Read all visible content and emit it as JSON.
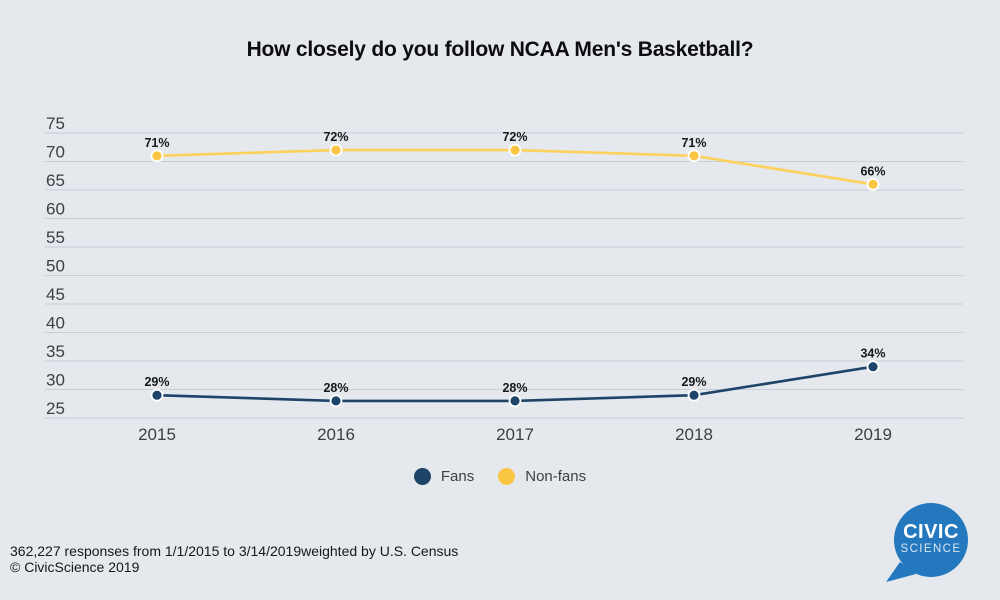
{
  "page": {
    "background": "#e5e8ed"
  },
  "chart_data": {
    "type": "line",
    "title": "How closely do you follow NCAA Men's Basketball?",
    "x": [
      "2015",
      "2016",
      "2017",
      "2018",
      "2019"
    ],
    "series": [
      {
        "name": "Fans",
        "values": [
          29,
          28,
          28,
          29,
          34
        ],
        "labels": [
          "29%",
          "28%",
          "28%",
          "29%",
          "34%"
        ],
        "line_color": "#1e4569",
        "marker_color": "#1e4569"
      },
      {
        "name": "Non-fans",
        "values": [
          71,
          72,
          72,
          71,
          66
        ],
        "labels": [
          "71%",
          "72%",
          "72%",
          "71%",
          "66%"
        ],
        "line_color": "#fcd25c",
        "marker_color": "#fbc544"
      }
    ],
    "ylim": [
      25,
      75
    ],
    "yticks": [
      75,
      70,
      65,
      60,
      55,
      50,
      45,
      40,
      35,
      30,
      25
    ],
    "grid": true,
    "legend_position": "bottom",
    "data_labels_shown": true
  },
  "footer": {
    "line1": "362,227 responses from 1/1/2015 to 3/14/2019weighted by U.S. Census",
    "line2": "© CivicScience 2019"
  },
  "logo": {
    "line1": "CIVIC",
    "line2": "SCIENCE",
    "color": "#2478be"
  }
}
